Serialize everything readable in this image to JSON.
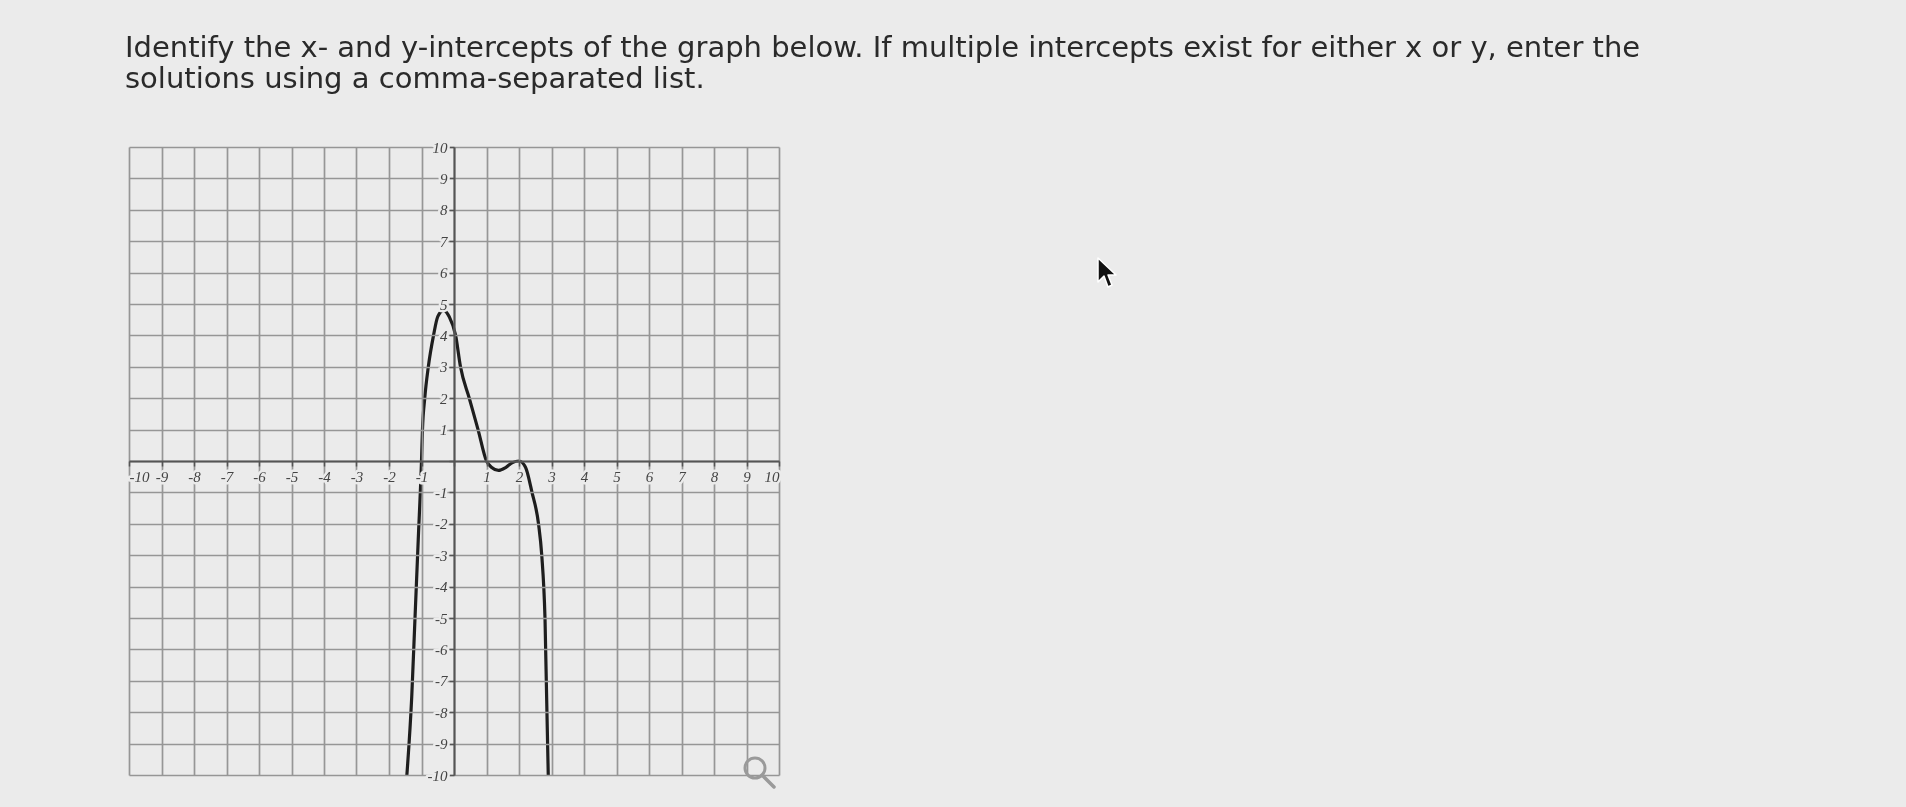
{
  "chart_data": {
    "type": "line",
    "title": "Identify the x- and y-intercepts of the graph below. If multiple intercepts exist for either x or y, enter the solutions using a comma-separated list.",
    "x": [
      -1.45,
      -1.3,
      -1.2,
      -1.1,
      -1,
      -0.97,
      -0.9,
      -0.79,
      -0.63,
      -0.5,
      -0.32,
      -0.15,
      0.05,
      0.2,
      0.47,
      0.74,
      1,
      1.15,
      1.37,
      1.6,
      1.8,
      2,
      2.2,
      2.4,
      2.6,
      2.7,
      2.8,
      2.9
    ],
    "series": [
      {
        "color": "#1e1e1e",
        "values": [
          -10,
          -7.5,
          -5,
          -2.5,
          0,
          1,
          2,
          3,
          4,
          4.6,
          4.8,
          4.6,
          4,
          3,
          2,
          1,
          0,
          -0.2,
          -0.3,
          -0.2,
          -0.05,
          0,
          -0.2,
          -1,
          -2,
          -3,
          -5,
          -10
        ]
      }
    ],
    "xlim": [
      -10,
      10
    ],
    "ylim": [
      -10,
      10
    ],
    "xticks": [
      -10,
      -9,
      -8,
      -7,
      -6,
      -5,
      -4,
      -3,
      -2,
      -1,
      {
        "value": 0,
        "label": null
      },
      1,
      2,
      3,
      4,
      5,
      6,
      7,
      8,
      9,
      10
    ],
    "yticks": [
      -10,
      -9,
      -8,
      -7,
      -6,
      -5,
      -4,
      -3,
      -2,
      -1,
      {
        "value": 0,
        "label": null
      },
      1,
      2,
      3,
      4,
      5,
      6,
      7,
      8,
      9,
      10
    ],
    "grid": true,
    "line_style": "solid"
  }
}
